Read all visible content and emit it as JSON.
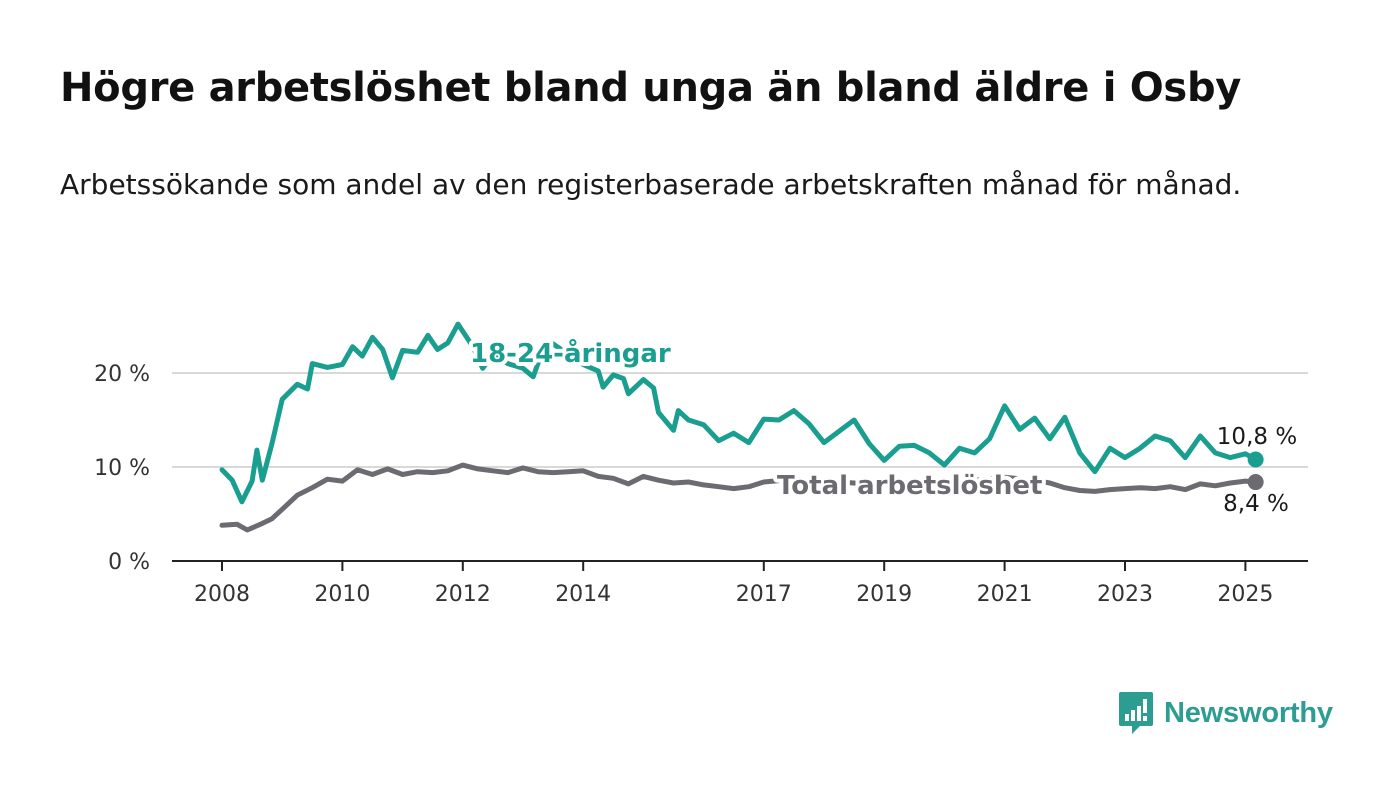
{
  "title": "Högre arbetslöshet bland unga än bland äldre i Osby",
  "subtitle": "Arbetssökande som andel av den registerbaserade arbetskraften månad för månad.",
  "brand": {
    "name": "Newsworthy",
    "icon": "newsworthy-logo-icon",
    "color": "#2d9d92"
  },
  "chart_data": {
    "type": "line",
    "title": "Högre arbetslöshet bland unga än bland äldre i Osby",
    "subtitle": "Arbetssökande som andel av den registerbaserade arbetskraften månad för månad.",
    "xlabel": "",
    "ylabel": "",
    "xlim": [
      2008.0,
      2025.1667
    ],
    "ylim": [
      0,
      20
    ],
    "x_ticks": [
      2008,
      2010,
      2012,
      2014,
      2017,
      2019,
      2021,
      2023,
      2025
    ],
    "y_ticks": [
      {
        "value": 0,
        "label": "0 %"
      },
      {
        "value": 10,
        "label": "10 %"
      },
      {
        "value": 20,
        "label": "20 %"
      }
    ],
    "grid": "horizontal",
    "legend": "inline labels",
    "series": [
      {
        "name": "18-24-åringar",
        "color": "#1a9e8f",
        "end_label": "10,8 %",
        "points": [
          [
            2008.0,
            9.7
          ],
          [
            2008.17,
            8.6
          ],
          [
            2008.33,
            6.3
          ],
          [
            2008.5,
            8.5
          ],
          [
            2008.58,
            11.8
          ],
          [
            2008.67,
            8.6
          ],
          [
            2008.83,
            12.5
          ],
          [
            2009.0,
            17.2
          ],
          [
            2009.25,
            18.8
          ],
          [
            2009.42,
            18.3
          ],
          [
            2009.5,
            21.0
          ],
          [
            2009.75,
            20.6
          ],
          [
            2010.0,
            20.9
          ],
          [
            2010.17,
            22.8
          ],
          [
            2010.33,
            21.8
          ],
          [
            2010.5,
            23.8
          ],
          [
            2010.67,
            22.5
          ],
          [
            2010.83,
            19.5
          ],
          [
            2011.0,
            22.4
          ],
          [
            2011.25,
            22.2
          ],
          [
            2011.42,
            24.0
          ],
          [
            2011.58,
            22.5
          ],
          [
            2011.75,
            23.2
          ],
          [
            2011.92,
            25.2
          ],
          [
            2012.17,
            22.8
          ],
          [
            2012.33,
            20.5
          ],
          [
            2012.5,
            22.0
          ],
          [
            2012.75,
            21.0
          ],
          [
            2013.0,
            20.5
          ],
          [
            2013.17,
            19.6
          ],
          [
            2013.33,
            22.5
          ],
          [
            2013.5,
            23.1
          ],
          [
            2013.75,
            22.0
          ],
          [
            2014.0,
            20.9
          ],
          [
            2014.25,
            20.2
          ],
          [
            2014.33,
            18.5
          ],
          [
            2014.5,
            19.8
          ],
          [
            2014.67,
            19.4
          ],
          [
            2014.75,
            17.8
          ],
          [
            2015.0,
            19.3
          ],
          [
            2015.17,
            18.4
          ],
          [
            2015.25,
            15.8
          ],
          [
            2015.5,
            13.9
          ],
          [
            2015.58,
            16.0
          ],
          [
            2015.75,
            15.0
          ],
          [
            2016.0,
            14.5
          ],
          [
            2016.25,
            12.8
          ],
          [
            2016.5,
            13.6
          ],
          [
            2016.75,
            12.6
          ],
          [
            2017.0,
            15.1
          ],
          [
            2017.25,
            15.0
          ],
          [
            2017.5,
            16.0
          ],
          [
            2017.75,
            14.6
          ],
          [
            2018.0,
            12.6
          ],
          [
            2018.25,
            13.8
          ],
          [
            2018.5,
            15.0
          ],
          [
            2018.75,
            12.5
          ],
          [
            2019.0,
            10.7
          ],
          [
            2019.25,
            12.2
          ],
          [
            2019.5,
            12.3
          ],
          [
            2019.75,
            11.5
          ],
          [
            2020.0,
            10.2
          ],
          [
            2020.25,
            12.0
          ],
          [
            2020.5,
            11.5
          ],
          [
            2020.75,
            13.0
          ],
          [
            2021.0,
            16.5
          ],
          [
            2021.25,
            14.0
          ],
          [
            2021.5,
            15.2
          ],
          [
            2021.75,
            13.0
          ],
          [
            2022.0,
            15.3
          ],
          [
            2022.25,
            11.5
          ],
          [
            2022.5,
            9.5
          ],
          [
            2022.75,
            12.0
          ],
          [
            2023.0,
            11.0
          ],
          [
            2023.25,
            12.0
          ],
          [
            2023.5,
            13.3
          ],
          [
            2023.75,
            12.8
          ],
          [
            2024.0,
            11.0
          ],
          [
            2024.25,
            13.3
          ],
          [
            2024.5,
            11.5
          ],
          [
            2024.75,
            11.0
          ],
          [
            2025.0,
            11.4
          ],
          [
            2025.17,
            10.8
          ]
        ]
      },
      {
        "name": "Total arbetslöshet",
        "color": "#6b6b71",
        "end_label": "8,4 %",
        "points": [
          [
            2008.0,
            3.8
          ],
          [
            2008.25,
            3.9
          ],
          [
            2008.42,
            3.3
          ],
          [
            2008.67,
            4.0
          ],
          [
            2008.83,
            4.5
          ],
          [
            2009.0,
            5.5
          ],
          [
            2009.25,
            7.0
          ],
          [
            2009.5,
            7.8
          ],
          [
            2009.75,
            8.7
          ],
          [
            2010.0,
            8.5
          ],
          [
            2010.25,
            9.7
          ],
          [
            2010.5,
            9.2
          ],
          [
            2010.75,
            9.8
          ],
          [
            2011.0,
            9.2
          ],
          [
            2011.25,
            9.5
          ],
          [
            2011.5,
            9.4
          ],
          [
            2011.75,
            9.6
          ],
          [
            2012.0,
            10.2
          ],
          [
            2012.25,
            9.8
          ],
          [
            2012.5,
            9.6
          ],
          [
            2012.75,
            9.4
          ],
          [
            2013.0,
            9.9
          ],
          [
            2013.25,
            9.5
          ],
          [
            2013.5,
            9.4
          ],
          [
            2013.75,
            9.5
          ],
          [
            2014.0,
            9.6
          ],
          [
            2014.25,
            9.0
          ],
          [
            2014.5,
            8.8
          ],
          [
            2014.75,
            8.2
          ],
          [
            2015.0,
            9.0
          ],
          [
            2015.25,
            8.6
          ],
          [
            2015.5,
            8.3
          ],
          [
            2015.75,
            8.4
          ],
          [
            2016.0,
            8.1
          ],
          [
            2016.25,
            7.9
          ],
          [
            2016.5,
            7.7
          ],
          [
            2016.75,
            7.9
          ],
          [
            2017.0,
            8.4
          ],
          [
            2017.5,
            8.7
          ],
          [
            2018.0,
            8.5
          ],
          [
            2018.5,
            8.3
          ],
          [
            2019.0,
            8.1
          ],
          [
            2019.5,
            8.2
          ],
          [
            2020.0,
            8.4
          ],
          [
            2020.5,
            8.6
          ],
          [
            2021.0,
            8.9
          ],
          [
            2021.5,
            8.6
          ],
          [
            2021.75,
            8.3
          ],
          [
            2022.0,
            7.8
          ],
          [
            2022.25,
            7.5
          ],
          [
            2022.5,
            7.4
          ],
          [
            2022.75,
            7.6
          ],
          [
            2023.0,
            7.7
          ],
          [
            2023.25,
            7.8
          ],
          [
            2023.5,
            7.7
          ],
          [
            2023.75,
            7.9
          ],
          [
            2024.0,
            7.6
          ],
          [
            2024.25,
            8.2
          ],
          [
            2024.5,
            8.0
          ],
          [
            2024.75,
            8.3
          ],
          [
            2025.0,
            8.5
          ],
          [
            2025.17,
            8.4
          ]
        ]
      }
    ]
  }
}
